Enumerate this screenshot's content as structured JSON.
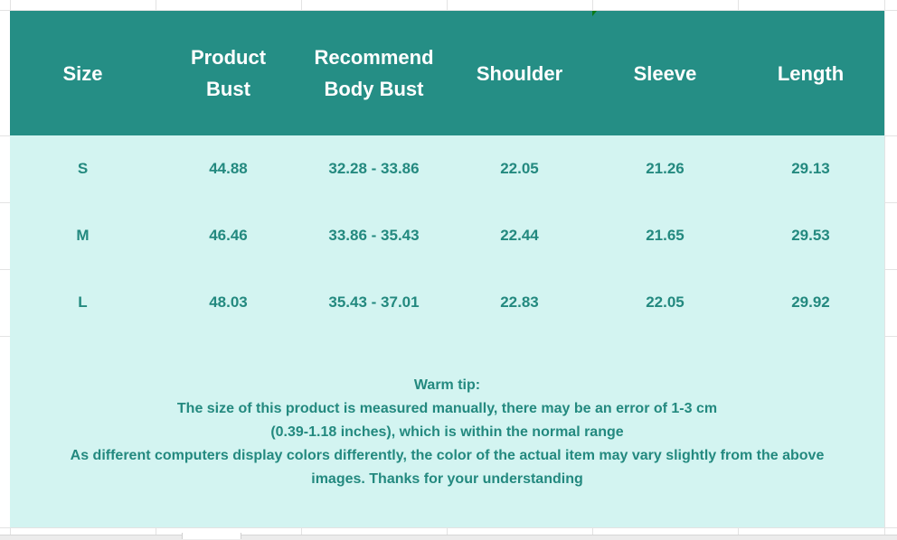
{
  "table": {
    "headers": [
      [
        "Size"
      ],
      [
        "Product",
        "Bust"
      ],
      [
        "Recommend",
        "Body Bust"
      ],
      [
        "Shoulder"
      ],
      [
        "Sleeve"
      ],
      [
        "Length"
      ]
    ],
    "rows": [
      [
        "S",
        "44.88",
        "32.28 - 33.86",
        "22.05",
        "21.26",
        "29.13"
      ],
      [
        "M",
        "46.46",
        "33.86 - 35.43",
        "22.44",
        "21.65",
        "29.53"
      ],
      [
        "L",
        "48.03",
        "35.43 - 37.01",
        "22.83",
        "22.05",
        "29.92"
      ]
    ],
    "tip_lines": [
      "Warm tip:",
      "The size of this product is measured manually, there may be an error of 1-3 cm",
      "(0.39-1.18 inches), which is within the normal range",
      "As different computers display colors differently, the color of the actual item may vary slightly from the above",
      "images. Thanks for your understanding"
    ]
  },
  "colors": {
    "header_bg": "#258e85",
    "body_bg": "#d3f4f1",
    "text": "#23897f"
  }
}
